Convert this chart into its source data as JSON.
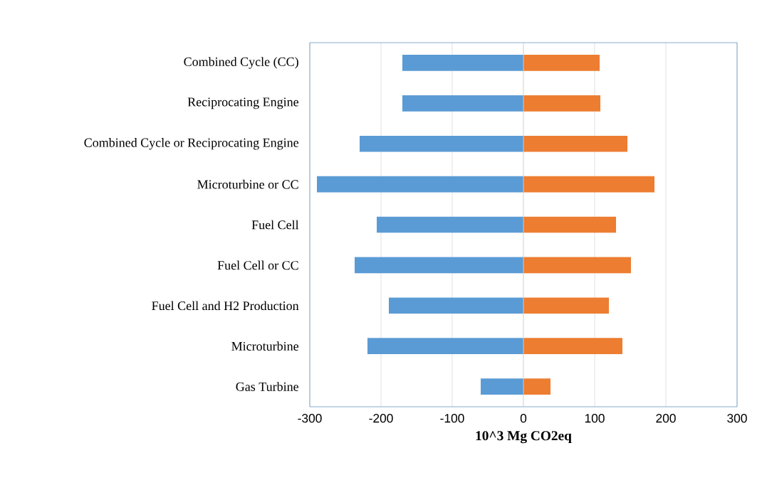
{
  "chart_data": {
    "type": "bar",
    "orientation": "horizontal",
    "xlabel": "10^3 Mg CO2eq",
    "categories": [
      "Combined Cycle (CC)",
      "Reciprocating Engine",
      "Combined Cycle or Reciprocating Engine",
      "Microturbine or CC",
      "Fuel Cell",
      "Fuel Cell or CC",
      "Fuel Cell and H2 Production",
      "Microturbine",
      "Gas Turbine"
    ],
    "series": [
      {
        "color": "#5b9bd5",
        "values": [
          -170,
          -170,
          -230,
          -290,
          -206,
          -237,
          -189,
          -219,
          -60
        ]
      },
      {
        "color": "#ed7d31",
        "values": [
          107,
          108,
          146,
          184,
          130,
          151,
          120,
          139,
          38
        ]
      }
    ],
    "xlim": [
      -300,
      300
    ],
    "xticks": [
      -300,
      -200,
      -100,
      0,
      100,
      200,
      300
    ],
    "grid": "x",
    "stacked": true
  }
}
